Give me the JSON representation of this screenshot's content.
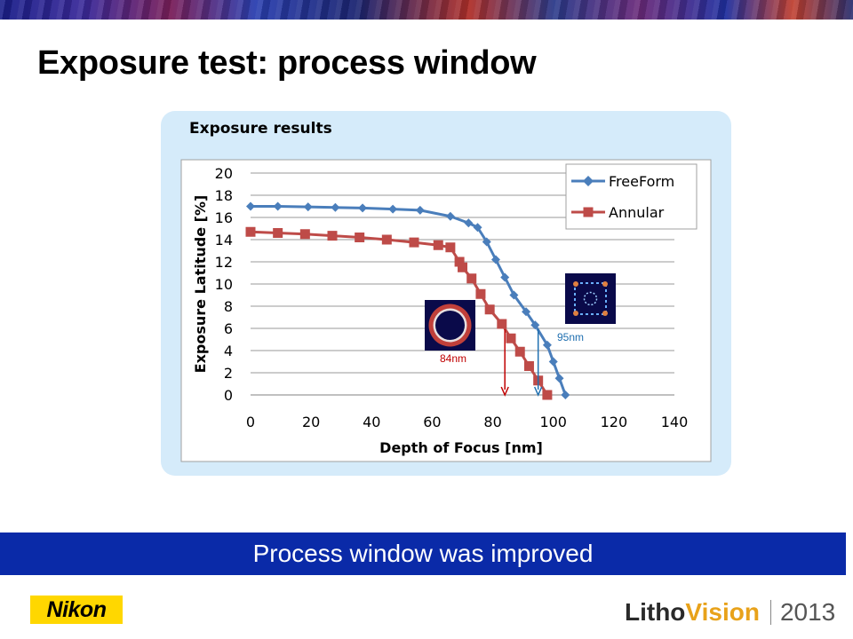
{
  "slide": {
    "title": "Exposure test: process window",
    "conclusion": "Process window was improved",
    "company_logo": "Nikon",
    "event_logo": {
      "word1": "Litho",
      "word2": "Vision",
      "year": "2013"
    }
  },
  "colors": {
    "freeform": "#4a7ebb",
    "annular": "#be4b48",
    "conclusion_bar": "#0a2aa8",
    "panel": "#d5ebfa",
    "nikon_yellow": "#ffd700"
  },
  "chart_data": {
    "type": "line",
    "title": "Exposure results",
    "xlabel": "Depth of Focus [nm]",
    "ylabel": "Exposure Latitude [%]",
    "xlim": [
      0,
      140
    ],
    "ylim": [
      0,
      20
    ],
    "xticks": [
      0,
      20,
      40,
      60,
      80,
      100,
      120,
      140
    ],
    "yticks": [
      0,
      2,
      4,
      6,
      8,
      10,
      12,
      14,
      16,
      18,
      20
    ],
    "grid": "horizontal",
    "legend_position": "top-right",
    "series": [
      {
        "name": "FreeForm",
        "color": "#4a7ebb",
        "marker": "diamond",
        "x": [
          0,
          9,
          19,
          28,
          37,
          47,
          56,
          66,
          72,
          75,
          78,
          81,
          84,
          87,
          91,
          94,
          98,
          100,
          102,
          104
        ],
        "y": [
          17.0,
          17.0,
          16.95,
          16.9,
          16.85,
          16.75,
          16.65,
          16.1,
          15.5,
          15.1,
          13.8,
          12.2,
          10.6,
          9.0,
          7.5,
          6.3,
          4.5,
          3.0,
          1.5,
          0.0
        ]
      },
      {
        "name": "Annular",
        "color": "#be4b48",
        "marker": "square",
        "x": [
          0,
          9,
          18,
          27,
          36,
          45,
          54,
          62,
          66,
          69,
          70,
          73,
          76,
          79,
          83,
          86,
          89,
          92,
          95,
          98
        ],
        "y": [
          14.7,
          14.6,
          14.5,
          14.35,
          14.2,
          14.0,
          13.75,
          13.5,
          13.3,
          12.0,
          11.5,
          10.5,
          9.1,
          7.7,
          6.4,
          5.1,
          3.9,
          2.6,
          1.3,
          0.0
        ]
      }
    ],
    "annotations": [
      {
        "label": "84nm",
        "x": 84,
        "color": "#c00000"
      },
      {
        "label": "95nm",
        "x": 95,
        "color": "#1f6fb0"
      }
    ]
  }
}
